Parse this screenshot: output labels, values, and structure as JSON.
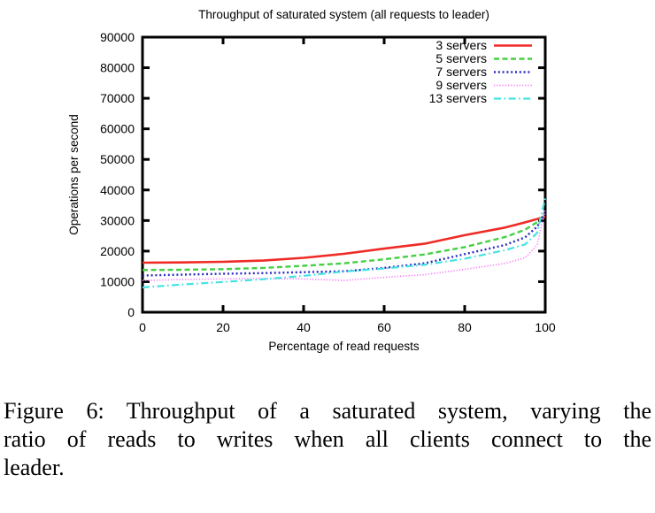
{
  "figure": {
    "caption": {
      "lines": [
        "Figure 6: Throughput of a saturated system, varying the",
        "ratio of reads to writes when all clients connect to the",
        "leader."
      ]
    }
  },
  "chart_data": {
    "type": "line",
    "title": "Throughput of saturated system (all requests to leader)",
    "xlabel": "Percentage of read requests",
    "ylabel": "Operations per second",
    "xlim": [
      0,
      100
    ],
    "ylim": [
      0,
      90000
    ],
    "x_ticks": [
      0,
      20,
      40,
      60,
      80,
      100
    ],
    "y_ticks": [
      0,
      10000,
      20000,
      30000,
      40000,
      50000,
      60000,
      70000,
      80000,
      90000
    ],
    "grid": false,
    "legend_position": "top-right-inside",
    "frame_color": "#000000",
    "x": [
      0,
      10,
      20,
      30,
      40,
      50,
      60,
      70,
      80,
      90,
      95,
      98,
      100
    ],
    "series": [
      {
        "name": "3 servers",
        "color": "#ef2b26",
        "style": "solid",
        "dash": "",
        "width": 2.6,
        "values": [
          16200,
          16300,
          16500,
          16900,
          17800,
          19100,
          20800,
          22400,
          25200,
          27700,
          29400,
          30500,
          31300
        ]
      },
      {
        "name": "5 servers",
        "color": "#45d043",
        "style": "dashed",
        "dash": "6 3.5",
        "width": 2.4,
        "values": [
          13800,
          13900,
          14100,
          14500,
          15200,
          16000,
          17300,
          18900,
          21300,
          24600,
          27000,
          29500,
          32300
        ]
      },
      {
        "name": "7 servers",
        "color": "#2b2bc4",
        "style": "dotted",
        "dash": "2 2.8",
        "width": 2.4,
        "values": [
          12000,
          12300,
          12600,
          12800,
          13100,
          13400,
          14500,
          16000,
          19000,
          22000,
          24500,
          28000,
          32800
        ]
      },
      {
        "name": "9 servers",
        "color": "#fb7cfb",
        "style": "fine-dotted",
        "dash": "1.2 2",
        "width": 1.7,
        "values": [
          10400,
          10700,
          10900,
          11000,
          10900,
          10400,
          11400,
          12300,
          14000,
          16000,
          17800,
          22000,
          33800
        ]
      },
      {
        "name": "13 servers",
        "color": "#44e3e3",
        "style": "dash-dot",
        "dash": "8 3.5 1.6 3.5",
        "width": 2.2,
        "values": [
          8100,
          9100,
          9900,
          10800,
          11900,
          13300,
          14300,
          15500,
          17500,
          20300,
          22200,
          26000,
          37300
        ]
      }
    ]
  }
}
